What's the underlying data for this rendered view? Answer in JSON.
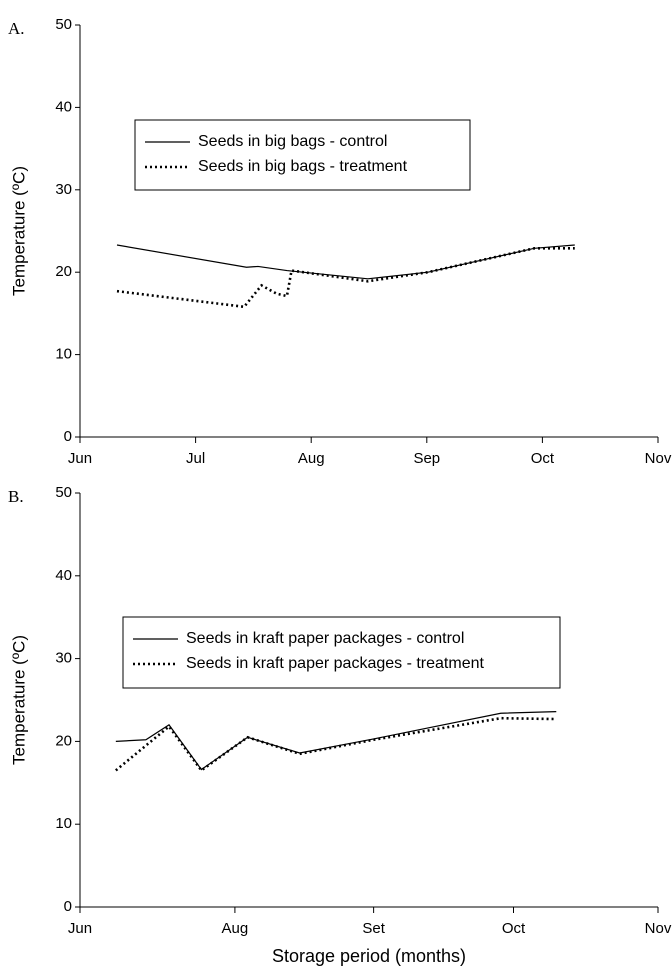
{
  "chart_data": [
    {
      "type": "line",
      "panel": "A.",
      "ylabel": "Temperature (ºC)",
      "xlim": [
        6,
        11
      ],
      "xticks": [
        {
          "value": 6,
          "label": "Jun"
        },
        {
          "value": 7,
          "label": "Jul"
        },
        {
          "value": 8,
          "label": "Aug"
        },
        {
          "value": 9,
          "label": "Sep"
        },
        {
          "value": 10,
          "label": "Oct"
        },
        {
          "value": 11,
          "label": "Nov"
        }
      ],
      "ylim": [
        0,
        50
      ],
      "yticks": [
        0,
        10,
        20,
        30,
        40,
        50
      ],
      "series": [
        {
          "name": "Seeds in big bags - control",
          "color": "#000000",
          "style": "solid",
          "x": [
            6.32,
            7.44,
            7.54,
            7.79,
            8.49,
            9.01,
            9.93,
            10.28
          ],
          "values": [
            23.3,
            20.6,
            20.7,
            20.2,
            19.2,
            20.0,
            22.9,
            23.3
          ]
        },
        {
          "name": "Seeds in big bags - treatment",
          "color": "#000000",
          "style": "dotted",
          "x": [
            6.32,
            7.42,
            7.57,
            7.7,
            7.79,
            7.83,
            8.49,
            9.01,
            9.93,
            10.28
          ],
          "values": [
            17.7,
            15.8,
            18.4,
            17.4,
            17.1,
            20.2,
            18.9,
            20.0,
            22.9,
            22.9
          ]
        }
      ]
    },
    {
      "type": "line",
      "panel": "B.",
      "ylabel": "Temperature (ºC)",
      "xlabel": "Storage period (months)",
      "xlim": [
        6,
        11
      ],
      "xticks": [
        {
          "value": 6,
          "label": "Jun"
        },
        {
          "value": 7.34,
          "label": "Aug"
        },
        {
          "value": 8.54,
          "label": "Set"
        },
        {
          "value": 9.75,
          "label": "Oct"
        },
        {
          "value": 11,
          "label": "Nov"
        }
      ],
      "ylim": [
        0,
        50
      ],
      "yticks": [
        0,
        10,
        20,
        30,
        40,
        50
      ],
      "series": [
        {
          "name": "Seeds in kraft paper packages - control",
          "color": "#000000",
          "style": "solid",
          "x": [
            6.31,
            6.57,
            6.77,
            7.05,
            7.45,
            7.9,
            8.54,
            9.64,
            10.12
          ],
          "values": [
            20.0,
            20.2,
            22.0,
            16.6,
            20.5,
            18.6,
            20.3,
            23.4,
            23.6
          ]
        },
        {
          "name": "Seeds in kraft paper packages - treatment",
          "color": "#000000",
          "style": "dotted",
          "x": [
            6.31,
            6.77,
            7.05,
            7.45,
            7.9,
            8.54,
            9.64,
            10.12
          ],
          "values": [
            16.5,
            21.8,
            16.5,
            20.5,
            18.5,
            20.2,
            22.8,
            22.7
          ]
        }
      ]
    }
  ]
}
